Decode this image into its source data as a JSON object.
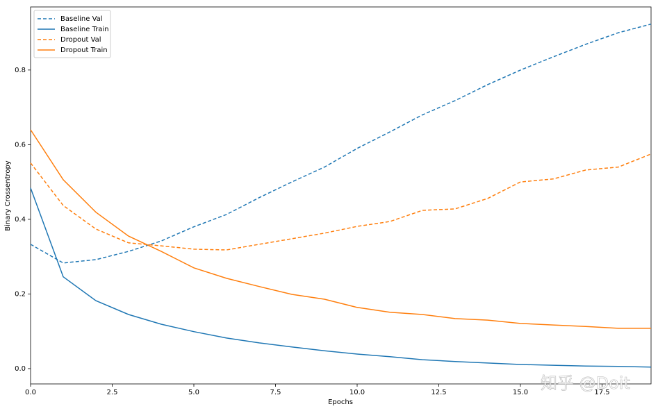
{
  "chart_data": {
    "type": "line",
    "xlabel": "Epochs",
    "ylabel": "Binary Crossentropy",
    "x": [
      0,
      1,
      2,
      3,
      4,
      5,
      6,
      7,
      8,
      9,
      10,
      11,
      12,
      13,
      14,
      15,
      16,
      17,
      18,
      19
    ],
    "xlim": [
      0,
      19
    ],
    "ylim": [
      -0.041,
      0.969
    ],
    "xticks": [
      {
        "value": 0,
        "label": "0.0"
      },
      2.5,
      {
        "value": 5,
        "label": "5.0"
      },
      7.5,
      {
        "value": 10,
        "label": "10.0"
      },
      12.5,
      {
        "value": 15,
        "label": "15.0"
      },
      17.5
    ],
    "yticks": [
      {
        "value": 0,
        "label": "0.0"
      },
      0.2,
      0.4,
      0.6,
      0.8
    ],
    "legend": "upper left",
    "series": [
      {
        "name": "Baseline Val",
        "color": "#1f77b4",
        "linestyle": "dashed",
        "values": [
          0.333,
          0.283,
          0.292,
          0.314,
          0.342,
          0.38,
          0.413,
          0.458,
          0.5,
          0.54,
          0.59,
          0.634,
          0.68,
          0.718,
          0.761,
          0.8,
          0.835,
          0.869,
          0.9,
          0.923
        ]
      },
      {
        "name": "Baseline Train",
        "color": "#1f77b4",
        "linestyle": "solid",
        "values": [
          0.484,
          0.246,
          0.182,
          0.145,
          0.119,
          0.099,
          0.082,
          0.069,
          0.058,
          0.048,
          0.039,
          0.032,
          0.024,
          0.019,
          0.015,
          0.011,
          0.009,
          0.007,
          0.006,
          0.004
        ]
      },
      {
        "name": "Dropout Val",
        "color": "#ff7f0e",
        "linestyle": "dashed",
        "values": [
          0.551,
          0.437,
          0.374,
          0.337,
          0.329,
          0.32,
          0.318,
          0.333,
          0.348,
          0.363,
          0.381,
          0.394,
          0.424,
          0.428,
          0.456,
          0.5,
          0.508,
          0.532,
          0.54,
          0.575
        ]
      },
      {
        "name": "Dropout Train",
        "color": "#ff7f0e",
        "linestyle": "solid",
        "values": [
          0.64,
          0.506,
          0.419,
          0.355,
          0.314,
          0.27,
          0.242,
          0.22,
          0.199,
          0.186,
          0.164,
          0.151,
          0.145,
          0.134,
          0.13,
          0.121,
          0.117,
          0.113,
          0.108,
          0.108
        ]
      }
    ],
    "watermark": "知乎 @Doit"
  }
}
